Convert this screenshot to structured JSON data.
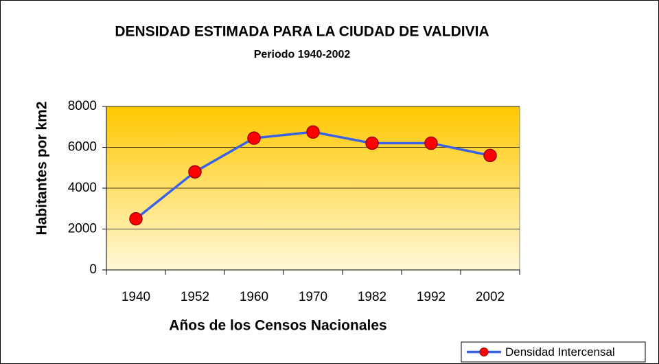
{
  "chart_data": {
    "type": "line",
    "title": "DENSIDAD ESTIMADA PARA LA CIUDAD DE VALDIVIA",
    "subtitle": "Periodo 1940-2002",
    "x_label": "Años de los Censos Nacionales",
    "y_label": "Habitantes por km2",
    "categories": [
      "1940",
      "1952",
      "1960",
      "1970",
      "1982",
      "1992",
      "2002"
    ],
    "series": [
      {
        "name": "Densidad Intercensal",
        "color": "#3a62e8",
        "marker_color": "#ff0000",
        "values": [
          2500,
          4800,
          6450,
          6750,
          6200,
          6200,
          5600
        ]
      }
    ],
    "ylim": [
      0,
      8000
    ],
    "yticks": [
      0,
      2000,
      4000,
      6000,
      8000
    ],
    "grid": true,
    "legend": "bottom-right"
  }
}
